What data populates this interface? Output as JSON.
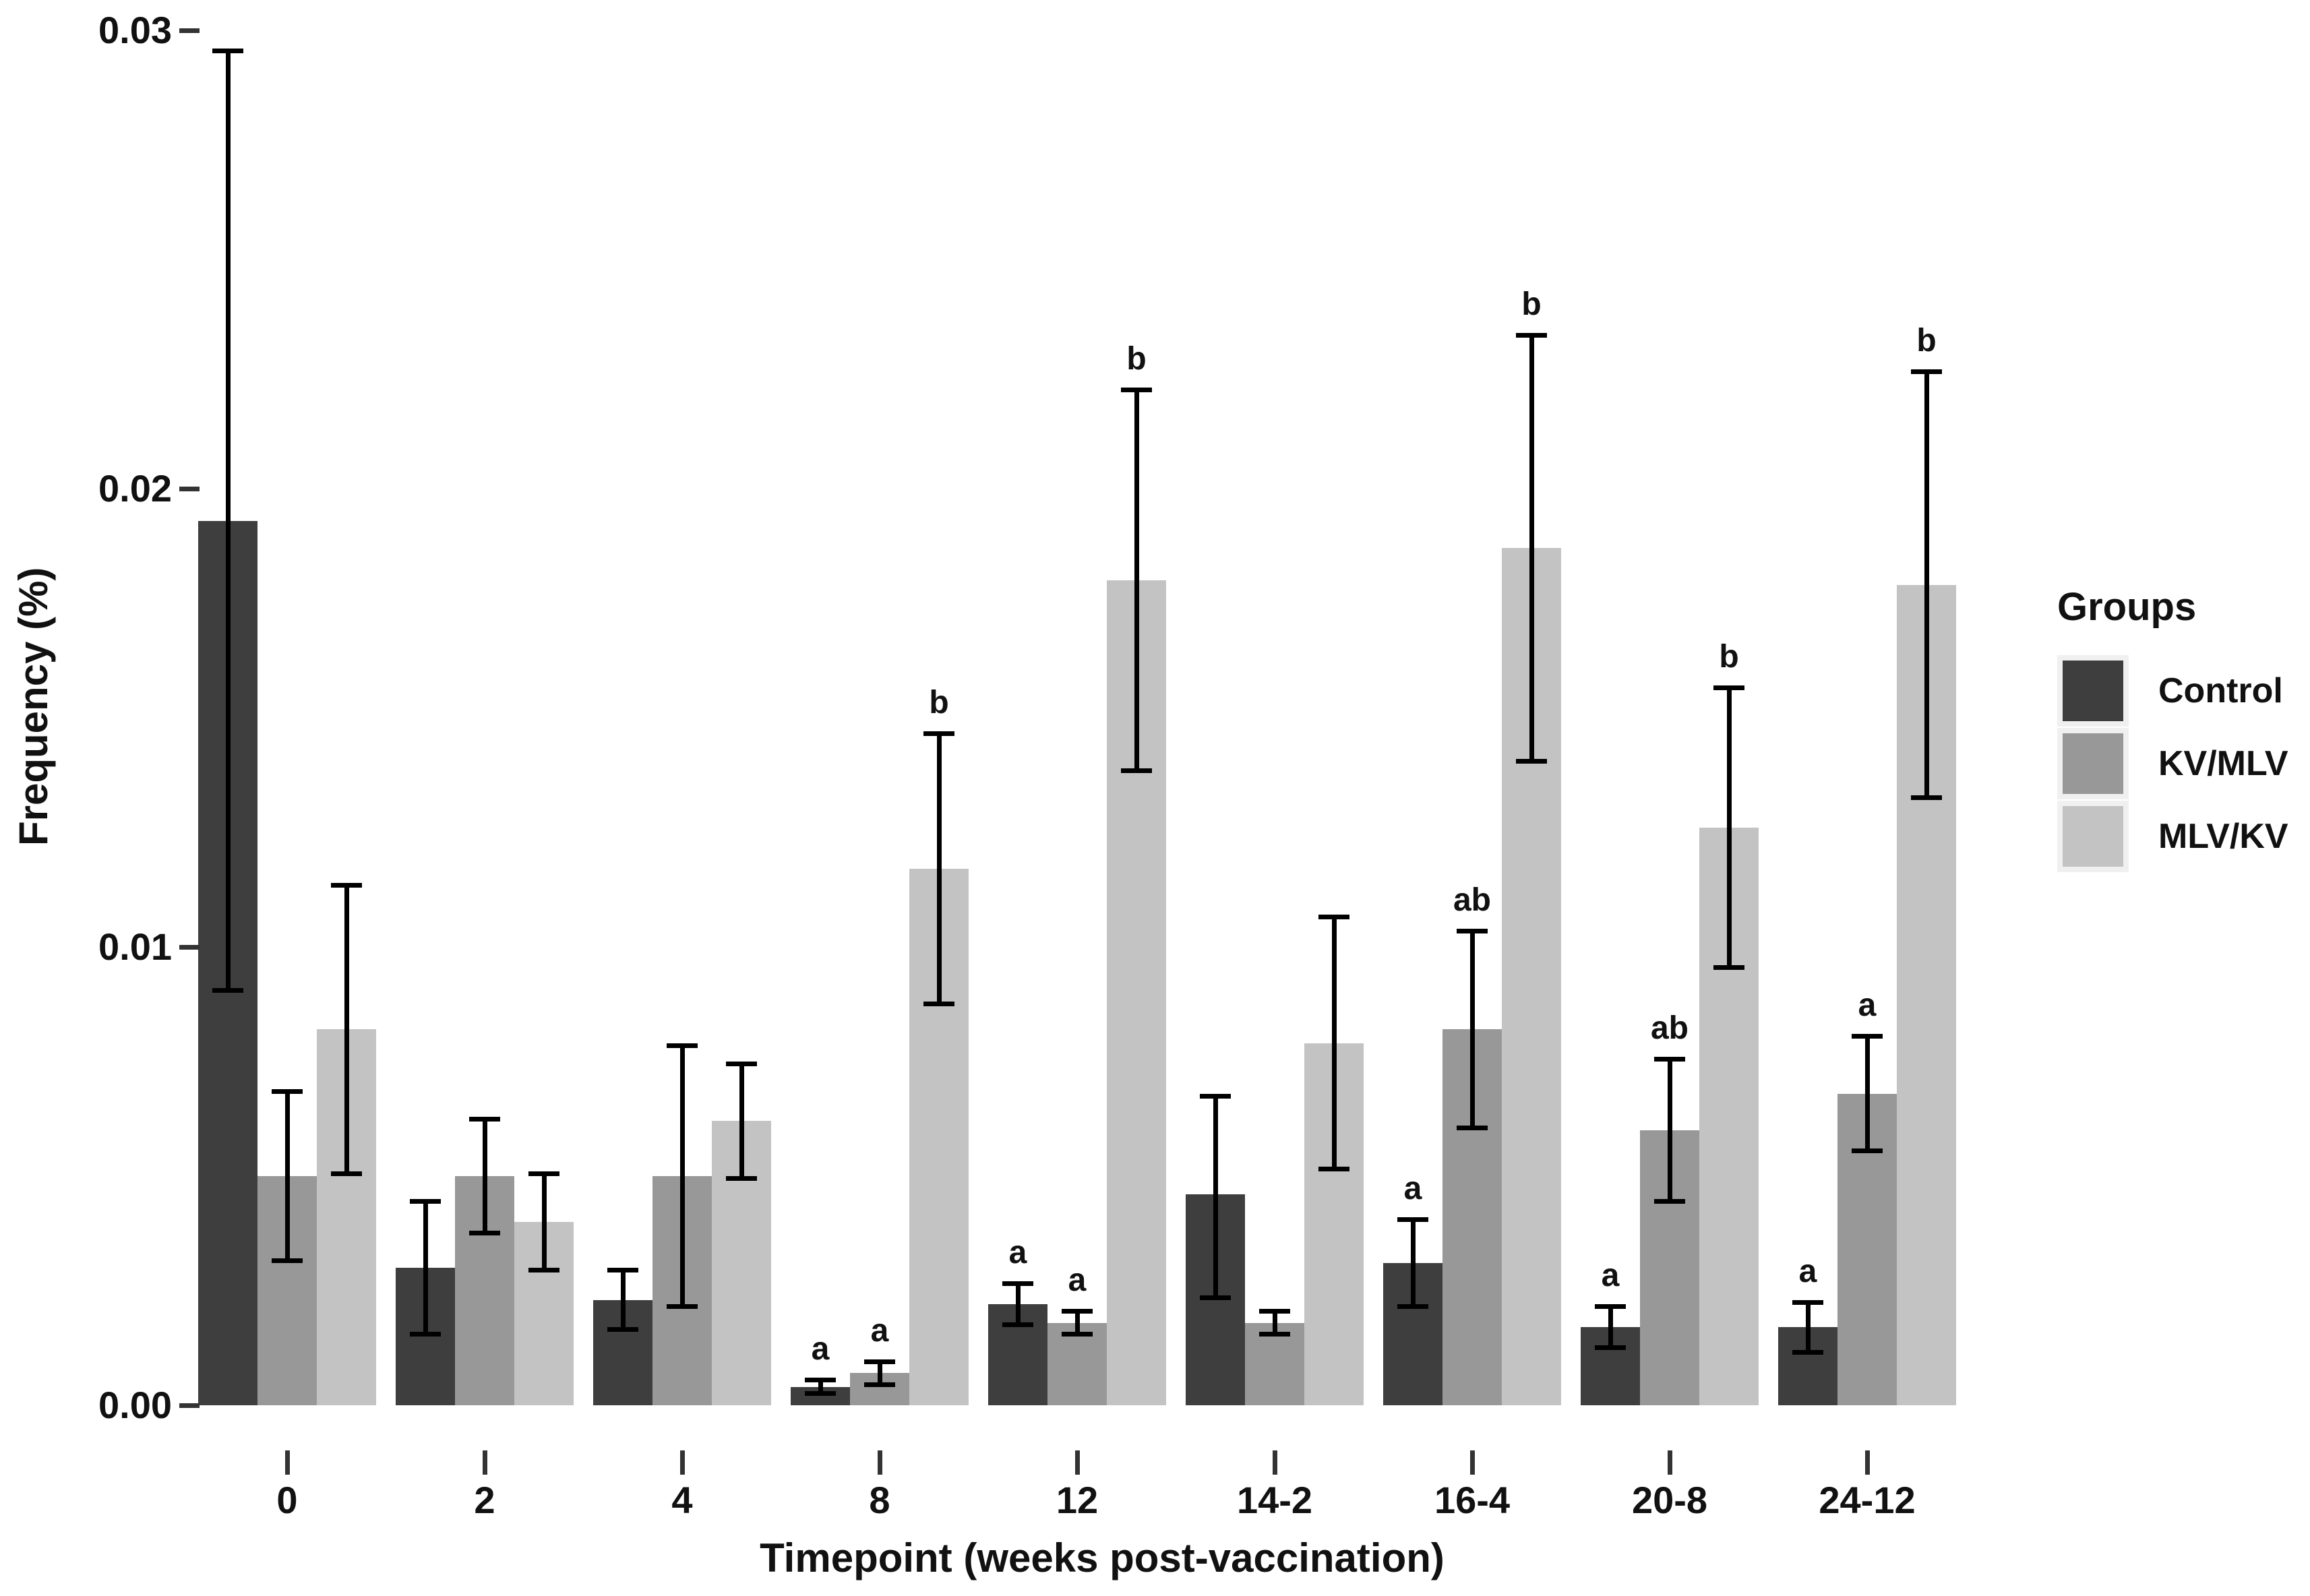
{
  "figure": {
    "y_axis": {
      "title": "Frequency (%)",
      "tick_labels": [
        "0.00",
        "0.01",
        "0.02",
        "0.03"
      ],
      "tick_values": [
        0.0,
        0.01,
        0.02,
        0.03
      ]
    },
    "x_axis": {
      "title": "Timepoint (weeks post-vaccination)",
      "tick_labels": [
        "0",
        "2",
        "4",
        "8",
        "12",
        "14-2",
        "16-4",
        "20-8",
        "24-12"
      ]
    },
    "legend": {
      "title": "Groups",
      "entries": [
        {
          "label": "Control",
          "color": "#3e3e3e"
        },
        {
          "label": "KV/MLV",
          "color": "#989898"
        },
        {
          "label": "MLV/KV",
          "color": "#c3c3c3"
        }
      ]
    }
  },
  "chart_data": {
    "type": "bar",
    "title": "",
    "xlabel": "Timepoint (weeks post-vaccination)",
    "ylabel": "Frequency (%)",
    "ylim": [
      0,
      0.03
    ],
    "grid": false,
    "legend_position": "right",
    "error_bars": true,
    "categories": [
      "0",
      "2",
      "4",
      "8",
      "12",
      "14-2",
      "16-4",
      "20-8",
      "24-12"
    ],
    "series": [
      {
        "name": "Control",
        "color": "#3e3e3e",
        "values": [
          0.0193,
          0.003,
          0.0023,
          0.0004,
          0.0022,
          0.0046,
          0.0031,
          0.0017,
          0.0017
        ],
        "error_low": [
          0.009,
          0.0015,
          0.0016,
          0.0002,
          0.0017,
          0.0023,
          0.0021,
          0.0012,
          0.0011
        ],
        "error_high": [
          0.0296,
          0.0045,
          0.003,
          0.0006,
          0.0027,
          0.0068,
          0.0041,
          0.0022,
          0.0023
        ],
        "sig_letters": [
          "",
          "",
          "",
          "a",
          "a",
          "",
          "a",
          "a",
          "a"
        ]
      },
      {
        "name": "KV/MLV",
        "color": "#989898",
        "values": [
          0.005,
          0.005,
          0.005,
          0.0007,
          0.0018,
          0.0018,
          0.0082,
          0.006,
          0.0068
        ],
        "error_low": [
          0.0031,
          0.0037,
          0.0021,
          0.0004,
          0.0015,
          0.0015,
          0.006,
          0.0044,
          0.0055
        ],
        "error_high": [
          0.0069,
          0.0063,
          0.0079,
          0.001,
          0.0021,
          0.0021,
          0.0104,
          0.0076,
          0.0081
        ],
        "sig_letters": [
          "",
          "",
          "",
          "a",
          "a",
          "",
          "ab",
          "ab",
          "a"
        ]
      },
      {
        "name": "MLV/KV",
        "color": "#c3c3c3",
        "values": [
          0.0082,
          0.004,
          0.0062,
          0.0117,
          0.018,
          0.0079,
          0.0187,
          0.0126,
          0.0179
        ],
        "error_low": [
          0.005,
          0.0029,
          0.0049,
          0.0087,
          0.0138,
          0.0051,
          0.014,
          0.0095,
          0.0132
        ],
        "error_high": [
          0.0114,
          0.0051,
          0.0075,
          0.0147,
          0.0222,
          0.0107,
          0.0234,
          0.0157,
          0.0226
        ],
        "sig_letters": [
          "",
          "",
          "",
          "b",
          "b",
          "",
          "b",
          "b",
          "b"
        ]
      }
    ]
  }
}
